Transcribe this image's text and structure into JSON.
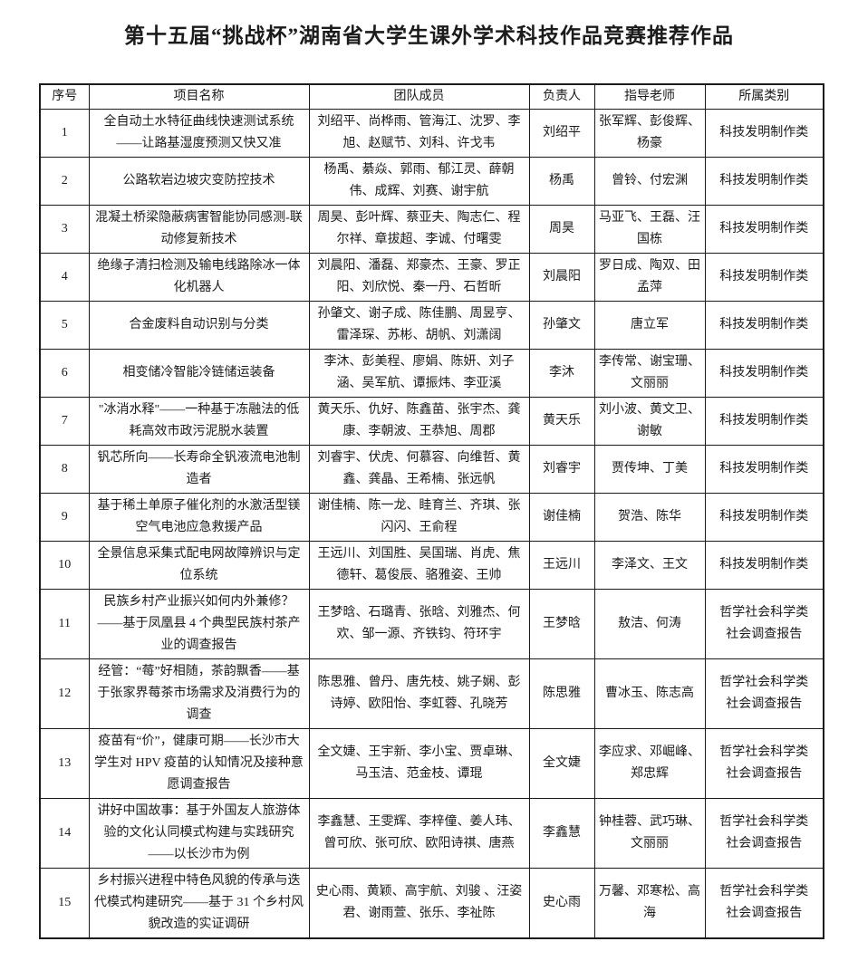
{
  "title": "第十五届“挑战杯”湖南省大学生课外学术科技作品竞赛推荐作品",
  "table": {
    "columns": [
      "序号",
      "项目名称",
      "团队成员",
      "负责人",
      "指导老师",
      "所属类别"
    ],
    "rows": [
      {
        "no": "1",
        "project": "全自动土水特征曲线快速测试系统——让路基湿度预测又快又准",
        "members": "刘绍平、尚桦雨、管海江、沈罗、李旭、赵赋节、刘科、许戈韦",
        "leader": "刘绍平",
        "advisors": "张军辉、彭俊辉、杨豪",
        "category": "科技发明制作类"
      },
      {
        "no": "2",
        "project": "公路软岩边坡灾变防控技术",
        "members": "杨禹、綦焱、郭雨、郁江灵、薛朝伟、成辉、刘赛、谢宇航",
        "leader": "杨禹",
        "advisors": "曾铃、付宏渊",
        "category": "科技发明制作类"
      },
      {
        "no": "3",
        "project": "混凝土桥梁隐蔽病害智能协同感测-联动修复新技术",
        "members": "周昊、彭叶辉、蔡亚夫、陶志仁、程尔祥、章拔超、李诚、付曙雯",
        "leader": "周昊",
        "advisors": "马亚飞、王磊、汪国栋",
        "category": "科技发明制作类"
      },
      {
        "no": "4",
        "project": "绝缘子清扫检测及输电线路除冰一体化机器人",
        "members": "刘晨阳、潘磊、郑豪杰、王豪、罗正阳、刘欣悦、秦一丹、石哲昕",
        "leader": "刘晨阳",
        "advisors": "罗日成、陶双、田孟萍",
        "category": "科技发明制作类"
      },
      {
        "no": "5",
        "project": "合金废料自动识别与分类",
        "members": "孙肇文、谢子成、陈佳鹏、周昱亨、雷泽琛、苏彬、胡帆、刘潇阔",
        "leader": "孙肇文",
        "advisors": "唐立军",
        "category": "科技发明制作类"
      },
      {
        "no": "6",
        "project": "相变储冷智能冷链储运装备",
        "members": "李沐、彭美程、廖娟、陈妍、刘子涵、吴军航、谭振炜、李亚溪",
        "leader": "李沐",
        "advisors": "李传常、谢宝珊、文丽丽",
        "category": "科技发明制作类"
      },
      {
        "no": "7",
        "project": "\"冰消水释\"——一种基于冻融法的低耗高效市政污泥脱水装置",
        "members": "黄天乐、仇好、陈鑫苗、张宇杰、龚康、李朝波、王恭旭、周郡",
        "leader": "黄天乐",
        "advisors": "刘小波、黄文卫、谢敏",
        "category": "科技发明制作类"
      },
      {
        "no": "8",
        "project": "钒芯所向——长寿命全钒液流电池制造者",
        "members": "刘睿宇、伏虎、何慕容、向维哲、黄鑫、龚晶、王希楠、张远帆",
        "leader": "刘睿宇",
        "advisors": "贾传坤、丁美",
        "category": "科技发明制作类"
      },
      {
        "no": "9",
        "project": "基于稀土单原子催化剂的水激活型镁空气电池应急救援产品",
        "members": "谢佳楠、陈一龙、眭育兰、齐琪、张闪闪、王俞程",
        "leader": "谢佳楠",
        "advisors": "贺浩、陈华",
        "category": "科技发明制作类"
      },
      {
        "no": "10",
        "project": "全景信息采集式配电网故障辨识与定位系统",
        "members": "王远川、刘国胜、吴国瑞、肖虎、焦德轩、葛俊辰、骆雅姿、王帅",
        "leader": "王远川",
        "advisors": "李泽文、王文",
        "category": "科技发明制作类"
      },
      {
        "no": "11",
        "project": "民族乡村产业振兴如何内外兼修？——基于凤凰县 4 个典型民族村茶产业的调查报告",
        "members": "王梦晗、石璐青、张晗、刘雅杰、何欢、邹一源、齐铁钧、符环宇",
        "leader": "王梦晗",
        "advisors": "敖洁、何涛",
        "category": "哲学社会科学类\n社会调查报告"
      },
      {
        "no": "12",
        "project": "经管：“莓”好相随，茶韵飘香——基于张家界莓茶市场需求及消费行为的调查",
        "members": "陈思雅、曾丹、唐先枝、姚子娴、彭诗婷、欧阳怡、李虹蓉、孔晓芳",
        "leader": "陈思雅",
        "advisors": "曹冰玉、陈志高",
        "category": "哲学社会科学类\n社会调查报告"
      },
      {
        "no": "13",
        "project": "疫苗有“价”，健康可期——长沙市大学生对 HPV 疫苗的认知情况及接种意愿调查报告",
        "members": "全文婕、王宇新、李小宝、贾卓琳、马玉洁、范金枝、谭琨",
        "leader": "全文婕",
        "advisors": "李应求、邓崛峰、郑忠辉",
        "category": "哲学社会科学类\n社会调查报告"
      },
      {
        "no": "14",
        "project": "讲好中国故事：基于外国友人旅游体验的文化认同模式构建与实践研究——以长沙市为例",
        "members": "李鑫慧、王雯辉、李梓僮、姜人玮、曾可欣、张可欣、欧阳诗祺、唐燕",
        "leader": "李鑫慧",
        "advisors": "钟桂蓉、武巧琳、文丽丽",
        "category": "哲学社会科学类\n社会调查报告"
      },
      {
        "no": "15",
        "project": "乡村振兴进程中特色风貌的传承与迭代模式构建研究——基于 31 个乡村风貌改造的实证调研",
        "members": "史心雨、黄颖、高宇航、刘骏 、汪姿君、谢雨萱、张乐、李祉陈",
        "leader": "史心雨",
        "advisors": "万馨、邓寒松、高海",
        "category": "哲学社会科学类\n社会调查报告"
      }
    ]
  }
}
